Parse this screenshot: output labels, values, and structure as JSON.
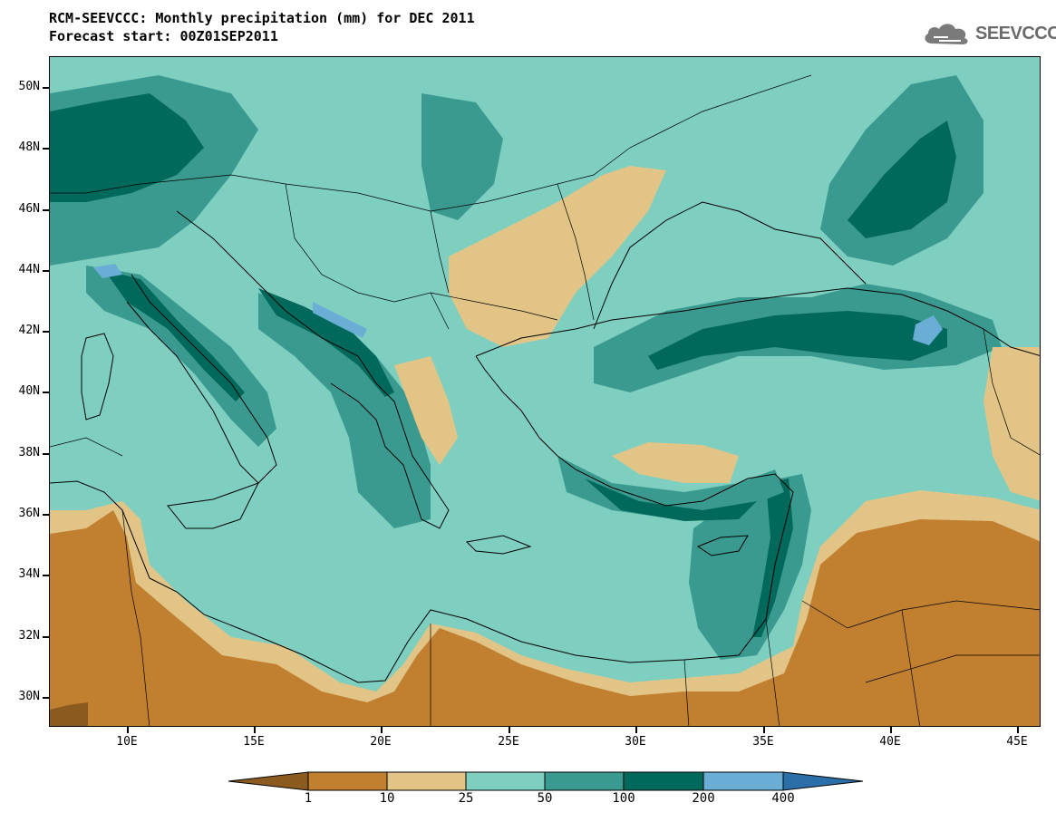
{
  "header": {
    "title": "RCM-SEEVCCC: Monthly precipitation (mm) for DEC 2011",
    "subtitle": "Forecast start: 00Z01SEP2011"
  },
  "logo": {
    "text": "SEEVCCC",
    "icon": "cloud-icon"
  },
  "axes": {
    "lat_labels": [
      "50N",
      "48N",
      "46N",
      "44N",
      "42N",
      "40N",
      "38N",
      "36N",
      "34N",
      "32N",
      "30N"
    ],
    "lon_labels": [
      "10E",
      "15E",
      "20E",
      "25E",
      "30E",
      "35E",
      "40E",
      "45E"
    ]
  },
  "colorbar": {
    "levels": [
      "1",
      "10",
      "25",
      "50",
      "100",
      "200",
      "400"
    ],
    "colors": [
      "#8b5a1e",
      "#c08030",
      "#e3c487",
      "#7fcfc0",
      "#3a9a8f",
      "#00695c",
      "#6aaed6",
      "#2b6fa8"
    ]
  },
  "palette": {
    "dark_brown": "#8b5a1e",
    "brown": "#c08030",
    "tan": "#e3c487",
    "light_teal": "#7fcfc0",
    "teal": "#3a9a8f",
    "dark_teal": "#00695c",
    "light_blue": "#6aaed6"
  }
}
